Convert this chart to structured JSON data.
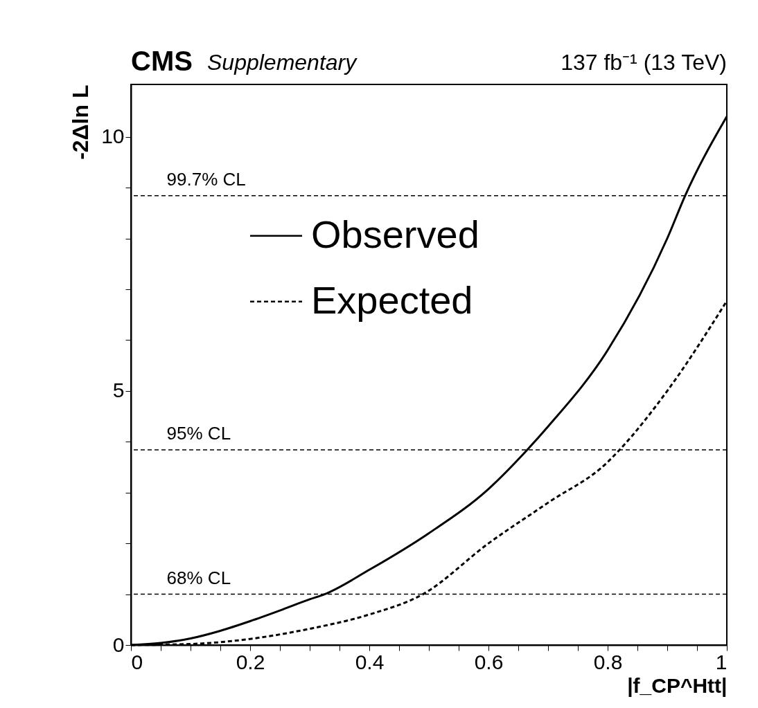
{
  "chart_data": {
    "type": "line",
    "title": "CMS",
    "subtitle": "Supplementary",
    "annotations": [
      "137 fb⁻¹ (13 TeV)"
    ],
    "xlabel": "|f_CP^Htt|",
    "ylabel": "-2Δln L",
    "series": [
      {
        "name": "Observed",
        "color": "#000000",
        "line_style": "solid",
        "x": [
          0,
          0.05,
          0.1,
          0.15,
          0.2,
          0.25,
          0.3,
          0.325,
          0.4,
          0.5,
          0.6,
          0.665,
          0.7,
          0.8,
          0.9,
          0.93,
          1
        ],
        "values": [
          0,
          0.04,
          0.13,
          0.28,
          0.47,
          0.68,
          0.9,
          1.0,
          1.48,
          2.2,
          3.07,
          3.84,
          4.3,
          5.8,
          8.0,
          8.84,
          10.4
        ]
      },
      {
        "name": "Expected",
        "color": "#000000",
        "line_style": "dashed",
        "x": [
          0,
          0.1,
          0.2,
          0.3,
          0.4,
          0.49,
          0.6,
          0.7,
          0.8,
          0.82,
          0.9,
          1
        ],
        "values": [
          0,
          0.02,
          0.12,
          0.32,
          0.6,
          1.0,
          2.0,
          2.8,
          3.6,
          3.84,
          5.0,
          6.77
        ]
      }
    ],
    "xlim": [
      0,
      1
    ],
    "ylim": [
      0,
      11.03
    ],
    "xticks": [
      0,
      {
        "value": 0.05,
        "label": null
      },
      {
        "value": 0.1,
        "label": null
      },
      {
        "value": 0.15,
        "label": null
      },
      0.2,
      {
        "value": 0.25,
        "label": null
      },
      {
        "value": 0.3,
        "label": null
      },
      {
        "value": 0.35,
        "label": null
      },
      0.4,
      {
        "value": 0.45,
        "label": null
      },
      {
        "value": 0.5,
        "label": null
      },
      {
        "value": 0.55,
        "label": null
      },
      0.6,
      {
        "value": 0.65,
        "label": null
      },
      {
        "value": 0.7,
        "label": null
      },
      {
        "value": 0.75,
        "label": null
      },
      0.8,
      {
        "value": 0.85,
        "label": null
      },
      {
        "value": 0.9,
        "label": null
      },
      {
        "value": 0.95,
        "label": null
      },
      1
    ],
    "yticks": [
      0,
      {
        "value": 1,
        "label": null
      },
      {
        "value": 2,
        "label": null
      },
      {
        "value": 3,
        "label": null
      },
      {
        "value": 4,
        "label": null
      },
      5,
      {
        "value": 6,
        "label": null
      },
      {
        "value": 7,
        "label": null
      },
      {
        "value": 8,
        "label": null
      },
      {
        "value": 9,
        "label": null
      },
      10
    ],
    "ref_lines": [
      {
        "axis": "y",
        "value": 8.84,
        "label": "99.7% CL",
        "line_style": "dashed",
        "color": "#000000"
      },
      {
        "axis": "y",
        "value": 3.84,
        "label": "95% CL",
        "line_style": "dashed",
        "color": "#000000"
      },
      {
        "axis": "y",
        "value": 1.0,
        "label": "68% CL",
        "line_style": "dashed",
        "color": "#000000"
      }
    ],
    "legend": "top left",
    "grid": false
  }
}
